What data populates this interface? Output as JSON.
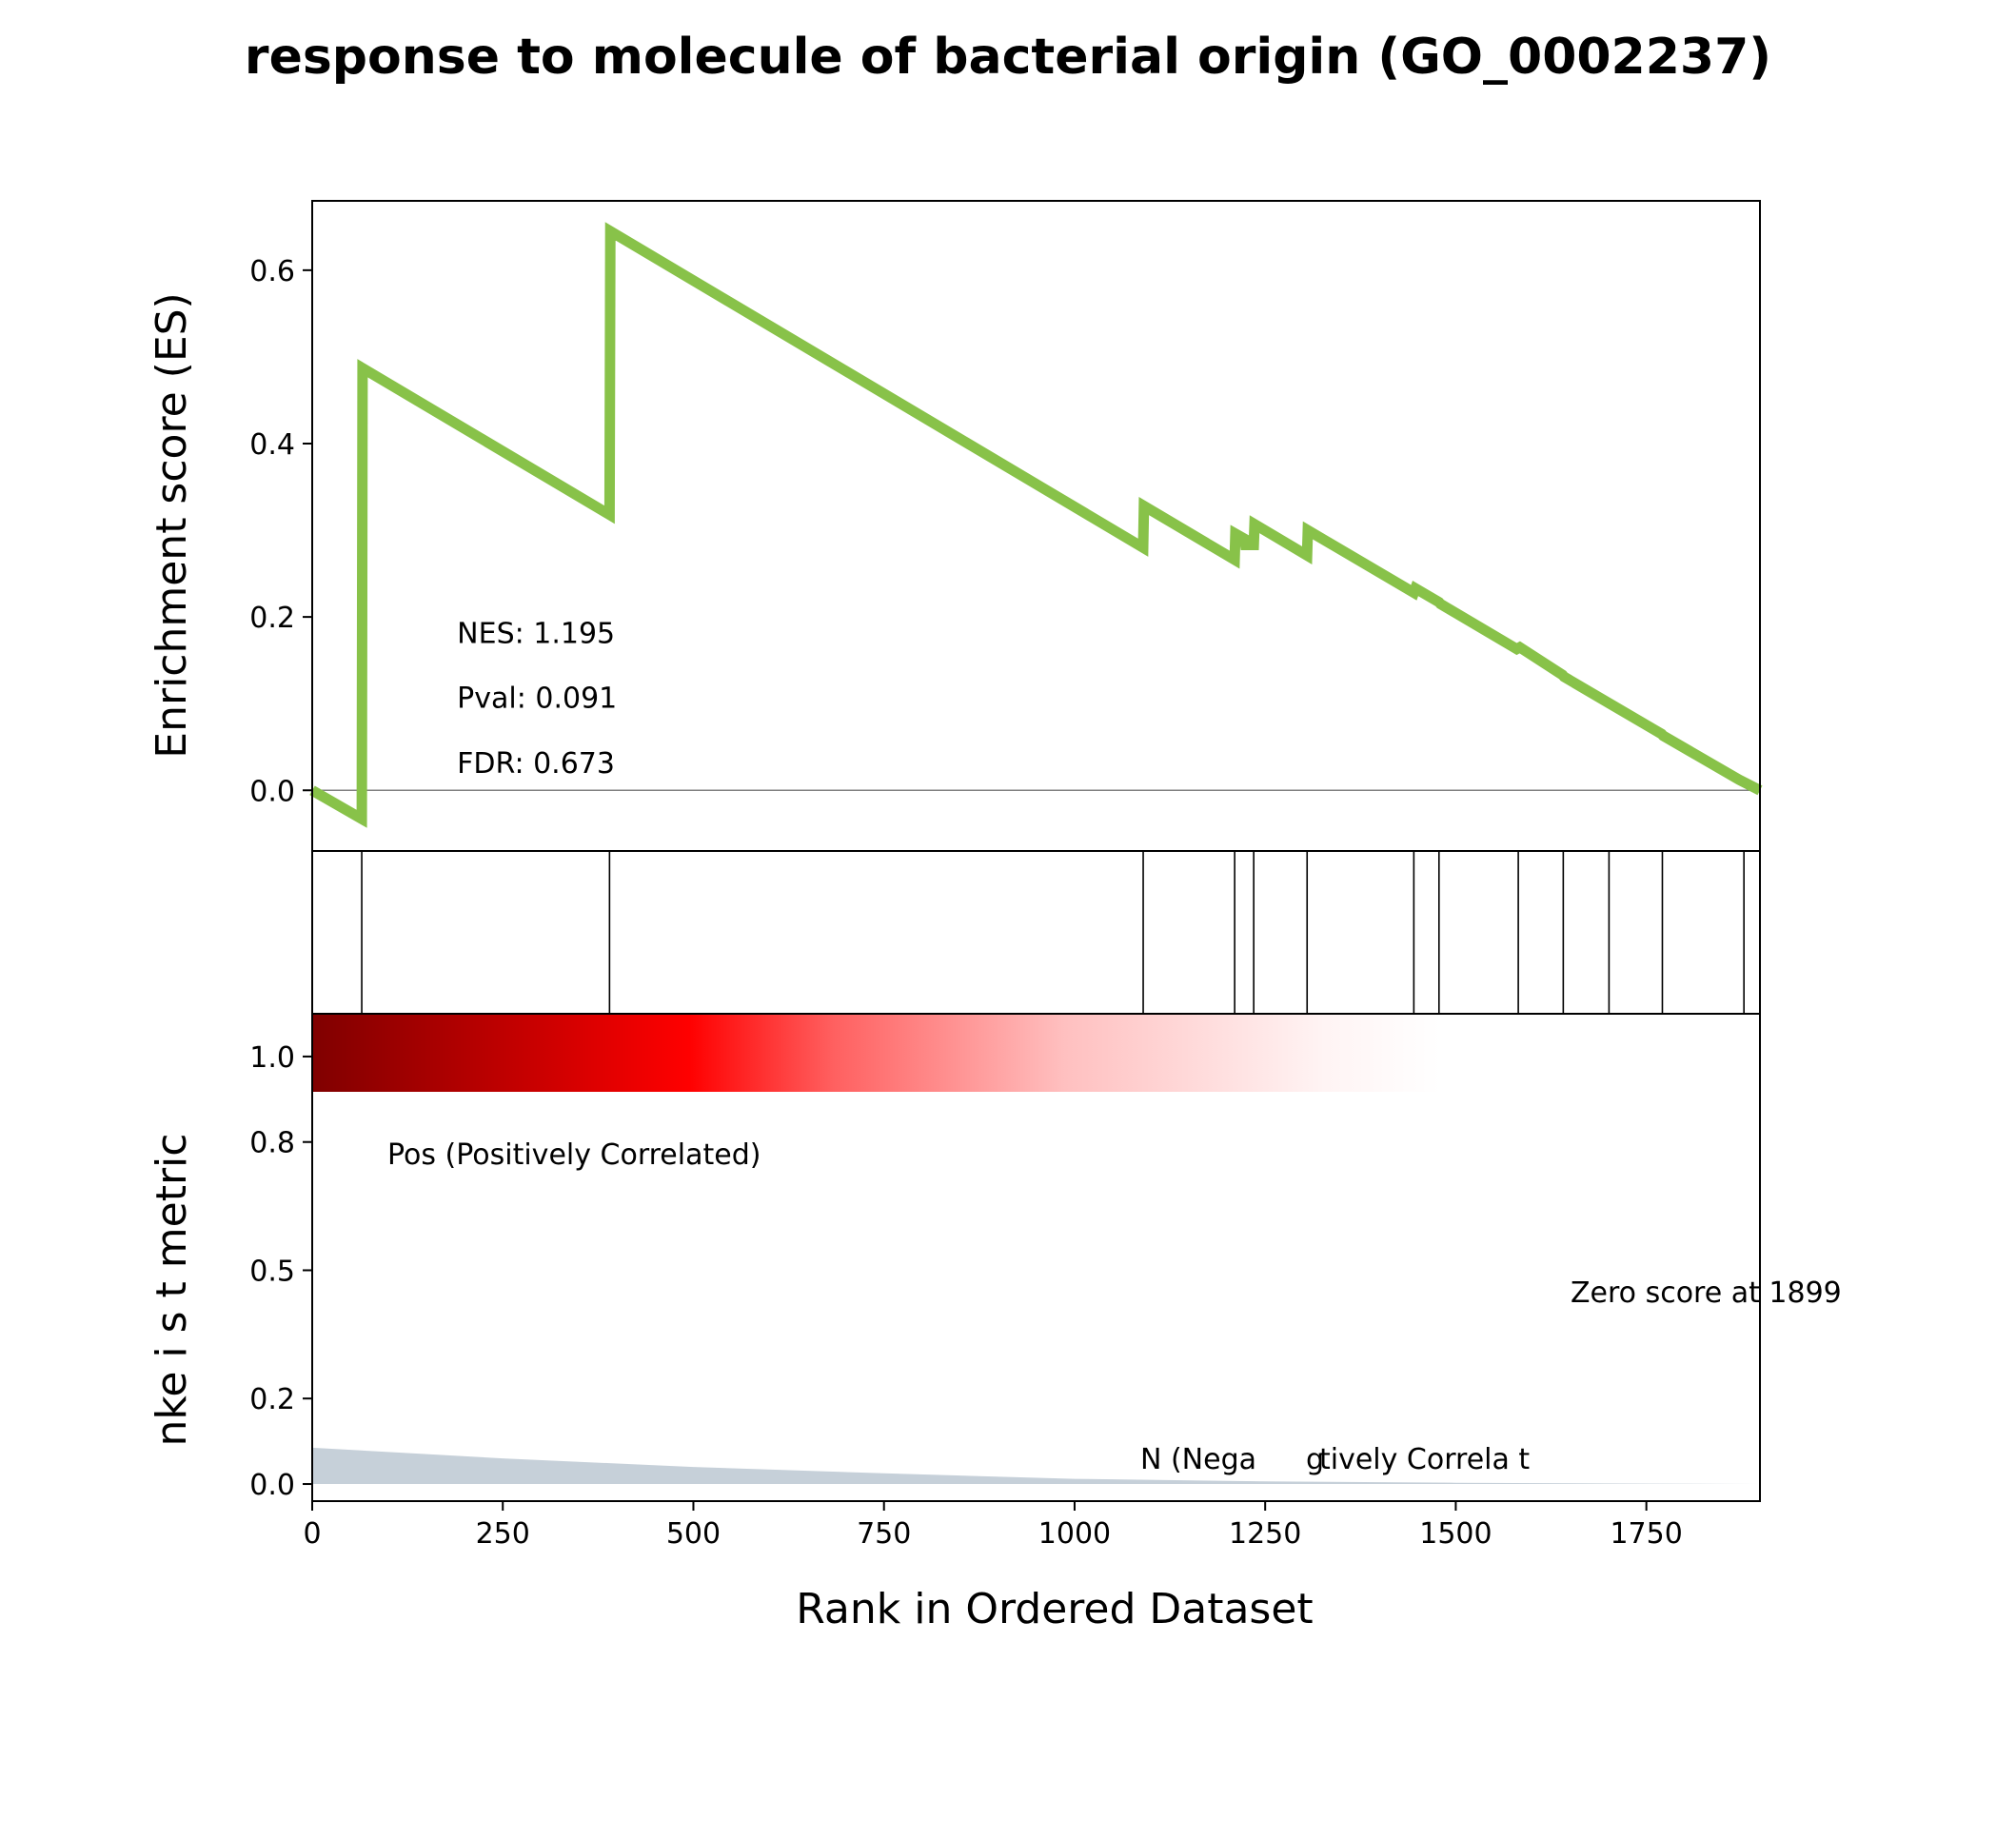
{
  "title": "response to molecule of bacterial origin (GO_0002237)",
  "chart_data": [
    {
      "type": "line",
      "ylabel": "Enrichment score (ES)",
      "xlim": [
        0,
        1899
      ],
      "ylim": [
        -0.07,
        0.68
      ],
      "y_ticks": [
        0.0,
        0.2,
        0.4,
        0.6
      ],
      "y_tick_labels": [
        "0.0",
        "0.2",
        "0.4",
        "0.6"
      ],
      "line_color": "#88c249",
      "x": [
        0,
        65,
        66,
        390,
        391,
        1090,
        1091,
        1210,
        1211,
        1223,
        1224,
        1235,
        1236,
        1305,
        1306,
        1445,
        1447,
        1478,
        1480,
        1580,
        1584,
        1640,
        1642,
        1700,
        1702,
        1770,
        1772,
        1870,
        1872,
        1899
      ],
      "y": [
        0.0,
        -0.033,
        0.487,
        0.318,
        0.645,
        0.28,
        0.328,
        0.266,
        0.296,
        0.29,
        0.283,
        0.283,
        0.307,
        0.271,
        0.3,
        0.228,
        0.233,
        0.217,
        0.215,
        0.163,
        0.165,
        0.133,
        0.131,
        0.101,
        0.1,
        0.065,
        0.063,
        0.013,
        0.012,
        0.0
      ],
      "annotations": [
        {
          "text": "NES: 1.195",
          "x": 190,
          "y": 0.17
        },
        {
          "text": "Pval: 0.091",
          "x": 190,
          "y": 0.095
        },
        {
          "text": "FDR: 0.673",
          "x": 190,
          "y": 0.02
        }
      ]
    },
    {
      "type": "hits",
      "xlim": [
        0,
        1899
      ],
      "hit_positions": [
        65,
        390,
        1090,
        1210,
        1235,
        1305,
        1445,
        1478,
        1582,
        1641,
        1701,
        1771,
        1878
      ]
    },
    {
      "type": "area",
      "xlabel": "Rank in Ordered Dataset",
      "ylabel": "nke   i s t metric",
      "xlim": [
        0,
        1899
      ],
      "ylim": [
        -0.04,
        1.1
      ],
      "x_ticks": [
        0,
        250,
        500,
        750,
        1000,
        1250,
        1500,
        1750
      ],
      "x_tick_labels": [
        "0",
        "250",
        "500",
        "750",
        "1000",
        "1250",
        "1500",
        "1750"
      ],
      "y_ticks": [
        0.0,
        0.2,
        0.5,
        0.8,
        1.0
      ],
      "y_tick_labels": [
        "0.0",
        "0.2",
        "0.5",
        "0.8",
        "1.0"
      ],
      "fill_color": "#c6d0d9",
      "x": [
        0,
        250,
        500,
        750,
        1000,
        1250,
        1500,
        1750,
        1899
      ],
      "y": [
        0.085,
        0.06,
        0.04,
        0.025,
        0.012,
        0.006,
        0.003,
        0.001,
        0.0
      ],
      "colorbar_colors": [
        "#800000",
        "#cc0000",
        "#ff0000",
        "#ff6060",
        "#ffc0c0",
        "#fff4f4",
        "#ffffff"
      ],
      "labels": {
        "positive": "Pos (Positively Correlated)",
        "negative_part1": "N  (Nega",
        "negative_part2": "tively Correla   t",
        "negative_overlap": "g",
        "zero": "Zero score at 1899"
      },
      "label_colors": {
        "positive": "#ff0000",
        "negative": "#0000ff"
      }
    }
  ]
}
